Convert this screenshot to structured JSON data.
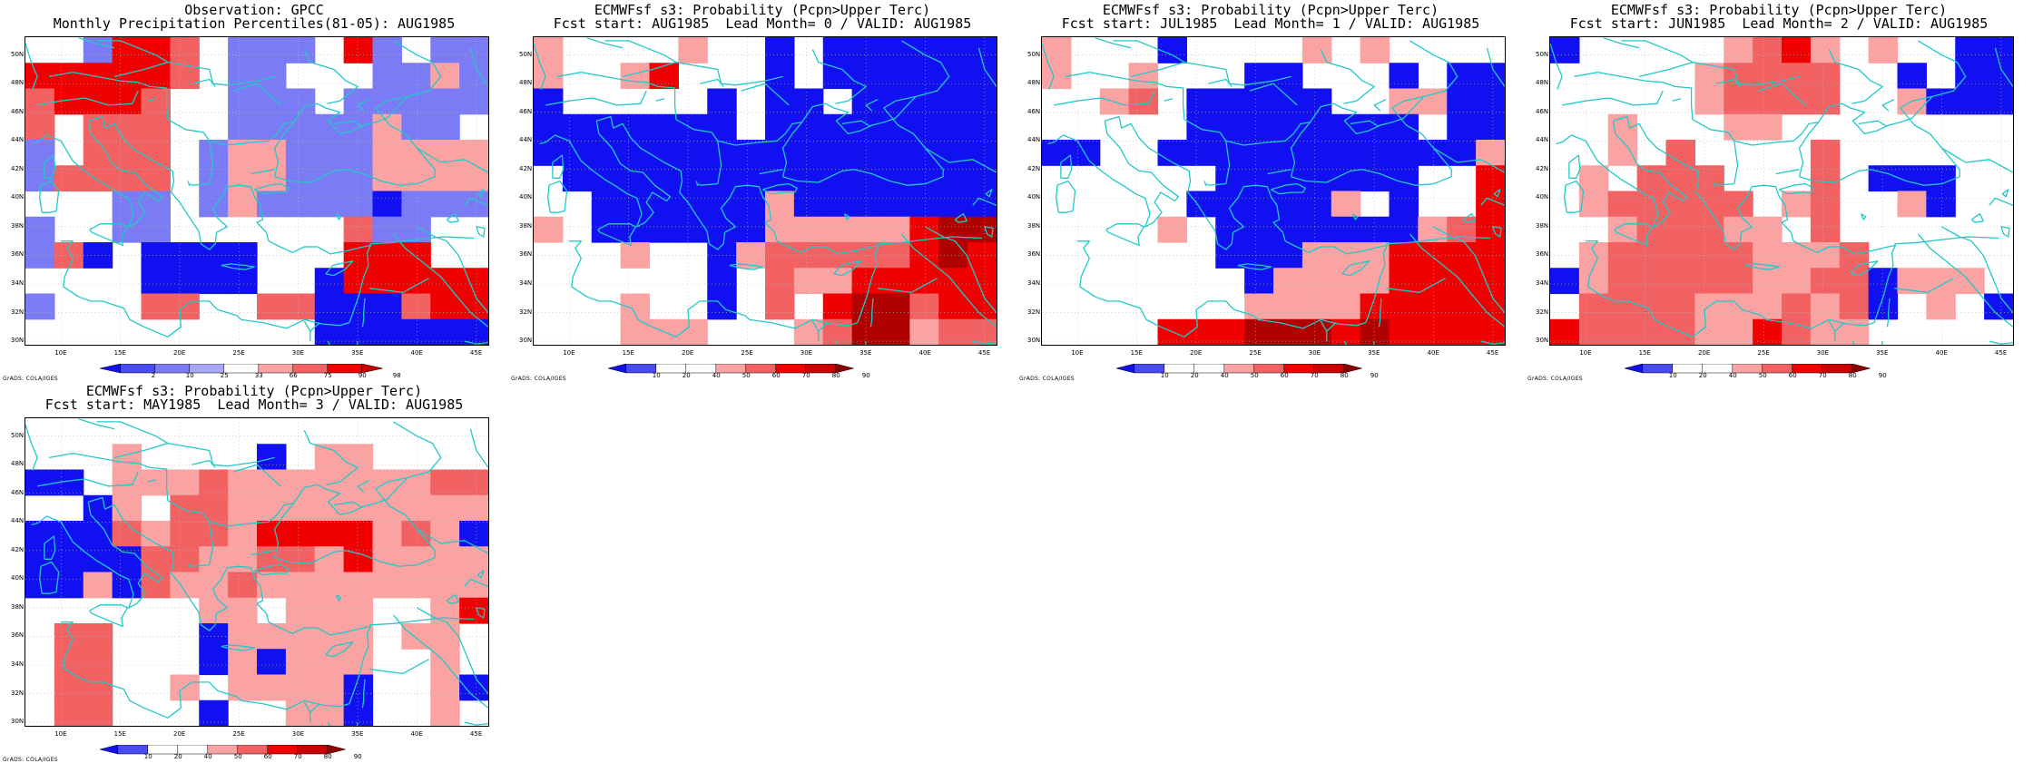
{
  "panels": [
    {
      "id": "obs",
      "title1": "Observation: GPCC",
      "title2": "Monthly Precipitation Percentiles(81-05): AUG1985",
      "legend": {
        "kind": "percentile",
        "labels": [
          "2",
          "10",
          "25",
          "33",
          "66",
          "75",
          "90",
          "98"
        ]
      },
      "grid": [
        "WWLRRMWLLLWRLWLL",
        "RRRRRMWLLWWWLLPL",
        "MRRRMWWLLLWLLLLL",
        "MWMMMWWLLLLLPLLW",
        "LWMMMWLPPLLLPPPP",
        "LMMMMWLPPLLLPPPP",
        "WWWLLWLPLLLLBLLL",
        "LWWLLWWWWWWMLLWW",
        "LMBWBBBBWWWRRRWW",
        "WWWWBBBBWWBRRRRR",
        "LWWWMMWWMMBBBMRR",
        "WWWWWWWWWWBBBBBB"
      ]
    },
    {
      "id": "lead0",
      "title1": "ECMWFsf s3: Probability (Pcpn>Upper Terc)",
      "title2": "Fcst start: AUG1985  Lead Month= 0 / VALID: AUG1985",
      "legend": {
        "kind": "probability",
        "labels": [
          "10",
          "20",
          "40",
          "50",
          "60",
          "70",
          "80",
          "90"
        ]
      },
      "grid": [
        "PWWWWPWWBWBBBBBB",
        "PWWPRWWWBWBBBBBB",
        "BWWWWWBWBBWBBBBB",
        "BBBBBBBWBBBBBBBB",
        "BBBBBBBBBBBBBBBB",
        "WBBBBBBBBBBBBBBB",
        "WWBBBBBBPBBBBBBB",
        "PWBBBBBBPPPPPRXX",
        "WWWPWWBPMMMMMRXR",
        "WWWWWWBWMPPRRRRR",
        "WWWPWWBWMWRXXMRR",
        "WWWPPPWWWPMXXPMM"
      ]
    },
    {
      "id": "lead1",
      "title1": "ECMWFsf s3: Probability (Pcpn>Upper Terc)",
      "title2": "Fcst start: JUL1985  Lead Month= 1 / VALID: AUG1985",
      "legend": {
        "kind": "probability",
        "labels": [
          "10",
          "20",
          "40",
          "50",
          "60",
          "70",
          "80",
          "90"
        ]
      },
      "grid": [
        "PWWWBWWWWPWPWWWW",
        "PWWPWWWBBWWWBWBB",
        "WWPMWBBBBBWWPPBB",
        "WWWWWBBBBBBBBWBB",
        "BBWWBBBBBBBBBBBP",
        "WWWWWWBBBBBBBWWR",
        "WWWWWBBBBBPWBWWR",
        "WWWWPWBBBBBBBPMR",
        "WWWWWWBBBPPPRRRR",
        "WWWWWWWBPPPPRRRR",
        "WWWWWWWPPPPRRRRR",
        "WWWWRRRXXXRXRRRR"
      ]
    },
    {
      "id": "lead2",
      "title1": "ECMWFsf s3: Probability (Pcpn>Upper Terc)",
      "title2": "Fcst start: JUN1985  Lead Month= 2 / VALID: AUG1985",
      "legend": {
        "kind": "probability",
        "labels": [
          "10",
          "20",
          "40",
          "50",
          "60",
          "70",
          "80",
          "90"
        ]
      },
      "grid": [
        "BWWWWWPMRPWPWWBB",
        "WWWWWPMMMMWWBWBB",
        "WWWWWPMMMMWWPBBB",
        "WWPWWWPPWWWWWWWW",
        "WWPWMWWWWMWWWWWW",
        "WPWMMMWWWMWBBBWW",
        "WPMMMMMWPMWWPBWW",
        "WWPMMMPPWMWWWWWW",
        "WPMMMMMPPPMWWWWW",
        "BPMMMMMPPMMBPPPW",
        "WMMMMPPPMPMBWPWB",
        "RMMMMPPRMPPWWWWW"
      ]
    },
    {
      "id": "lead3",
      "title1": "ECMWFsf s3: Probability (Pcpn>Upper Terc)",
      "title2": "Fcst start: MAY1985  Lead Month= 3 / VALID: AUG1985",
      "legend": {
        "kind": "probability",
        "labels": [
          "10",
          "20",
          "40",
          "50",
          "60",
          "70",
          "80",
          "90"
        ]
      },
      "grid": [
        "WWWWWWWWWWWWWWWW",
        "WWWPWWWWBWPPWWWW",
        "BBWPPPMPPPPPPPMM",
        "WWBPWMMPPPPPPPPP",
        "BBBMPMMPRRRRPMPB",
        "BBBBMMPPMMPRPPPP",
        "BBPBMPPMPPPPPPPP",
        "WWWWWWPPWPPPWWPR",
        "WMMWWWBPPPPPWPPW",
        "WMMWWWBPBPPPWWPW",
        "WMMWWPWPPPPBWWPB",
        "WMMWWWBWWPPBWWPW"
      ]
    }
  ],
  "latitudes": [
    "50N",
    "48N",
    "46N",
    "44N",
    "42N",
    "40N",
    "38N",
    "36N",
    "34N",
    "32N",
    "30N"
  ],
  "longitudes": [
    "10E",
    "15E",
    "20E",
    "25E",
    "30E",
    "35E",
    "40E",
    "45E"
  ],
  "credit": "GrADS: COLA/IGES",
  "colors": {
    "W": "#ffffff",
    "P": "#fba3a3",
    "M": "#f26262",
    "R": "#f00000",
    "X": "#b00000",
    "B": "#1010f0",
    "L": "#7b7bf5",
    "V": "#a8a8f8"
  }
}
